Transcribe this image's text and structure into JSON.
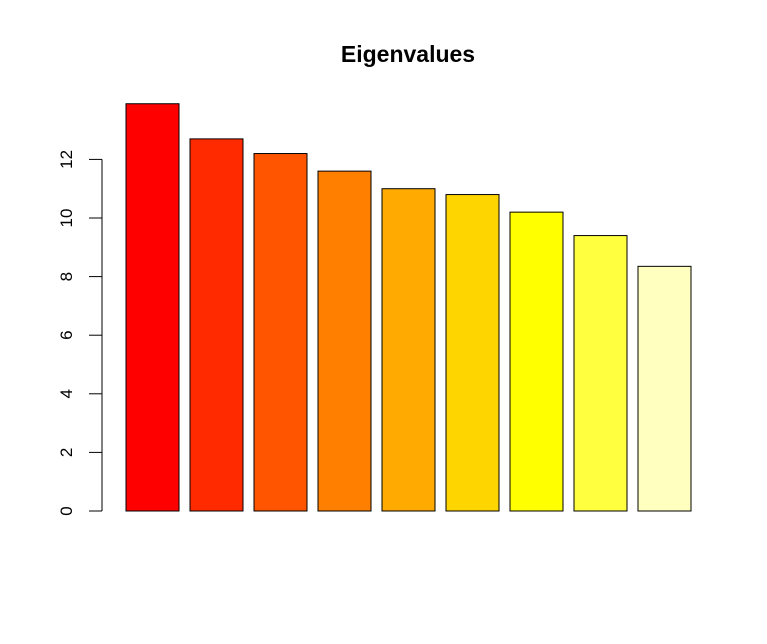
{
  "chart_data": {
    "type": "bar",
    "title": "Eigenvalues",
    "xlabel": "",
    "ylabel": "",
    "ylim": [
      0,
      14
    ],
    "yticks": [
      0,
      2,
      4,
      6,
      8,
      10,
      12
    ],
    "grid": false,
    "values": [
      13.9,
      12.7,
      12.2,
      11.6,
      11.0,
      10.8,
      10.2,
      9.4,
      8.35
    ],
    "colors": [
      "#FF0000",
      "#FF2A00",
      "#FF5500",
      "#FF8000",
      "#FFAA00",
      "#FFD500",
      "#FFFF00",
      "#FFFF40",
      "#FFFFBF"
    ]
  }
}
